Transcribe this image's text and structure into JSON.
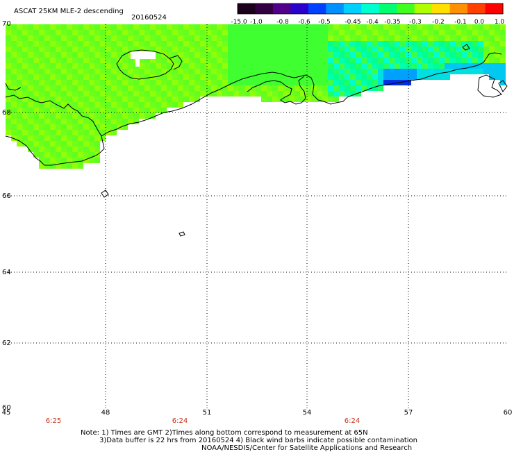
{
  "title": "ASCAT 25KM MLE-2 descending",
  "date": "20160524",
  "colorbar": {
    "labels": [
      "-15.0",
      "-1.0",
      "-0.8",
      "-0.6",
      "-0.5",
      "-0.45",
      "-0.4",
      "-0.35",
      "-0.3",
      "-0.2",
      "-0.1",
      "0.0",
      "1.0"
    ],
    "colors": [
      "#1a001a",
      "#300040",
      "#50008a",
      "#2a00cc",
      "#0040ff",
      "#0090ff",
      "#00d0ff",
      "#00ffd0",
      "#00ff70",
      "#40ff20",
      "#b0ff00",
      "#ffe000",
      "#ff9000",
      "#ff4000",
      "#ff0000"
    ]
  },
  "y_ticks": [
    "70",
    "68",
    "66",
    "64",
    "62",
    "60"
  ],
  "x_ticks": [
    "45",
    "48",
    "51",
    "54",
    "57",
    "60"
  ],
  "times": [
    "6:25",
    "6:24",
    "6:24"
  ],
  "notes": {
    "line1": "Note: 1) Times are GMT 2)Times along bottom correspond to measurement at 65N",
    "line2": "3)Data buffer is 22 hrs from 20160524 4) Black wind barbs indicate possible contamination",
    "line3": "NOAA/NESDIS/Center for Satellite Applications and Research"
  }
}
